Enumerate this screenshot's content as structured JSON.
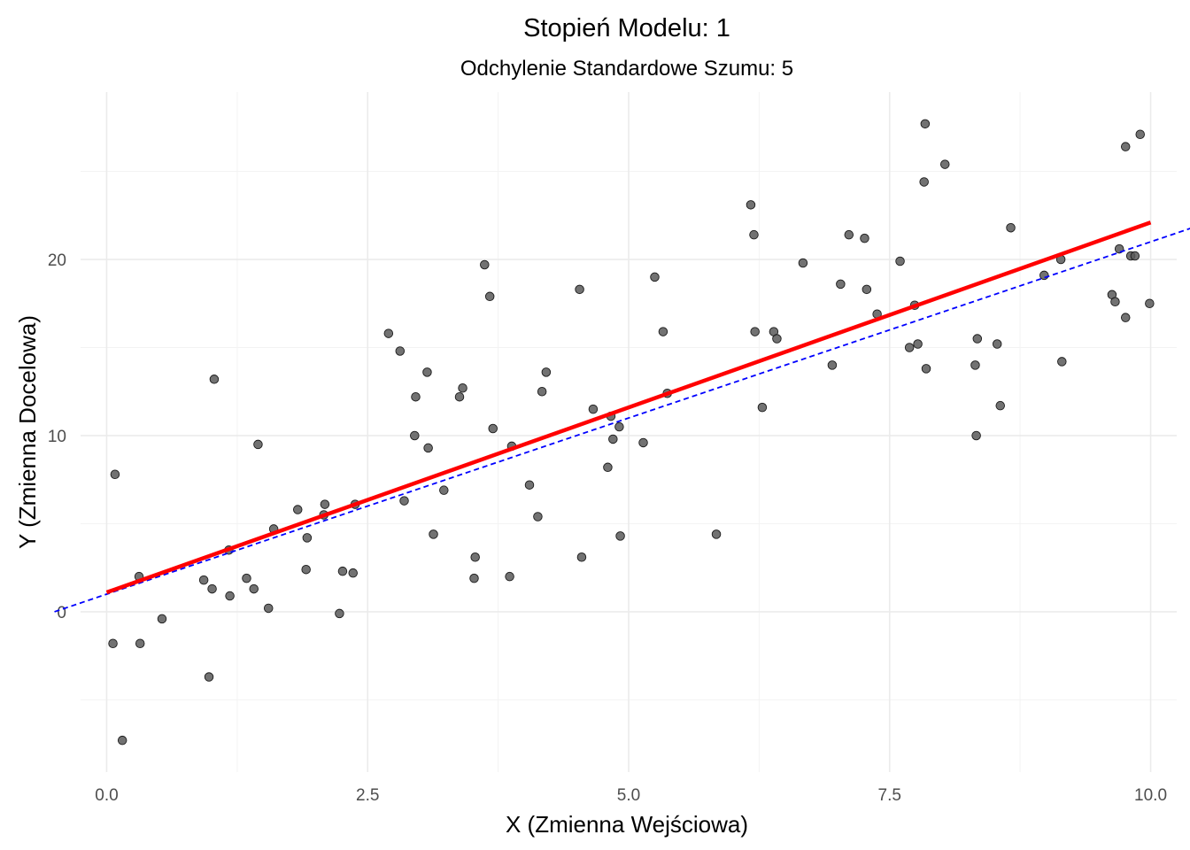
{
  "chart_data": {
    "type": "scatter",
    "title": "Stopień Modelu: 1",
    "subtitle": "Odchylenie Standardowe Szumu: 5",
    "xlabel": "X (Zmienna Wejściowa)",
    "ylabel": "Y (Zmienna Docelowa)",
    "xlim": [
      -0.25,
      10.25
    ],
    "ylim": [
      -9.1,
      29.5
    ],
    "x_ticks": [
      0.0,
      2.5,
      5.0,
      7.5,
      10.0
    ],
    "x_tick_labels": [
      "0.0",
      "2.5",
      "5.0",
      "7.5",
      "10.0"
    ],
    "y_ticks": [
      0,
      10,
      20
    ],
    "y_tick_labels": [
      "0",
      "10",
      "20"
    ],
    "grid": true,
    "colors": {
      "points": "#595959",
      "fit_line": "#ff0000",
      "true_line": "#0000ff"
    },
    "fitted_line": {
      "style": "solid",
      "x": [
        0.0,
        10.0
      ],
      "y": [
        1.1,
        22.1
      ]
    },
    "true_line": {
      "style": "dashed",
      "x": [
        -0.5,
        10.5
      ],
      "y": [
        0.0,
        22.0
      ]
    },
    "points": [
      {
        "x": 0.06,
        "y": -1.8
      },
      {
        "x": 0.08,
        "y": 7.8
      },
      {
        "x": 0.15,
        "y": -7.3
      },
      {
        "x": 0.31,
        "y": 2.0
      },
      {
        "x": 0.32,
        "y": -1.8
      },
      {
        "x": 0.53,
        "y": -0.4
      },
      {
        "x": 0.93,
        "y": 1.8
      },
      {
        "x": 0.98,
        "y": -3.7
      },
      {
        "x": 1.01,
        "y": 1.3
      },
      {
        "x": 1.03,
        "y": 13.2
      },
      {
        "x": 1.18,
        "y": 0.9
      },
      {
        "x": 1.17,
        "y": 3.5
      },
      {
        "x": 1.34,
        "y": 1.9
      },
      {
        "x": 1.41,
        "y": 1.3
      },
      {
        "x": 1.45,
        "y": 9.5
      },
      {
        "x": 1.55,
        "y": 0.2
      },
      {
        "x": 1.6,
        "y": 4.7
      },
      {
        "x": 1.83,
        "y": 5.8
      },
      {
        "x": 1.91,
        "y": 2.4
      },
      {
        "x": 1.92,
        "y": 4.2
      },
      {
        "x": 2.09,
        "y": 6.1
      },
      {
        "x": 2.08,
        "y": 5.5
      },
      {
        "x": 2.23,
        "y": -0.1
      },
      {
        "x": 2.26,
        "y": 2.3
      },
      {
        "x": 2.36,
        "y": 2.2
      },
      {
        "x": 2.38,
        "y": 6.1
      },
      {
        "x": 2.7,
        "y": 15.8
      },
      {
        "x": 2.81,
        "y": 14.8
      },
      {
        "x": 2.85,
        "y": 6.3
      },
      {
        "x": 2.95,
        "y": 10.0
      },
      {
        "x": 2.96,
        "y": 12.2
      },
      {
        "x": 3.07,
        "y": 13.6
      },
      {
        "x": 3.08,
        "y": 9.3
      },
      {
        "x": 3.13,
        "y": 4.4
      },
      {
        "x": 3.23,
        "y": 6.9
      },
      {
        "x": 3.38,
        "y": 12.2
      },
      {
        "x": 3.41,
        "y": 12.7
      },
      {
        "x": 3.52,
        "y": 1.9
      },
      {
        "x": 3.53,
        "y": 3.1
      },
      {
        "x": 3.62,
        "y": 19.7
      },
      {
        "x": 3.67,
        "y": 17.9
      },
      {
        "x": 3.7,
        "y": 10.4
      },
      {
        "x": 3.86,
        "y": 2.0
      },
      {
        "x": 3.88,
        "y": 9.4
      },
      {
        "x": 4.05,
        "y": 7.2
      },
      {
        "x": 4.13,
        "y": 5.4
      },
      {
        "x": 4.17,
        "y": 12.5
      },
      {
        "x": 4.21,
        "y": 13.6
      },
      {
        "x": 4.53,
        "y": 18.3
      },
      {
        "x": 4.55,
        "y": 3.1
      },
      {
        "x": 4.66,
        "y": 11.5
      },
      {
        "x": 4.8,
        "y": 8.2
      },
      {
        "x": 4.83,
        "y": 11.1
      },
      {
        "x": 4.85,
        "y": 9.8
      },
      {
        "x": 4.91,
        "y": 10.5
      },
      {
        "x": 4.92,
        "y": 4.3
      },
      {
        "x": 5.14,
        "y": 9.6
      },
      {
        "x": 5.25,
        "y": 19.0
      },
      {
        "x": 5.33,
        "y": 15.9
      },
      {
        "x": 5.37,
        "y": 12.4
      },
      {
        "x": 5.84,
        "y": 4.4
      },
      {
        "x": 6.17,
        "y": 23.1
      },
      {
        "x": 6.2,
        "y": 21.4
      },
      {
        "x": 6.21,
        "y": 15.9
      },
      {
        "x": 6.28,
        "y": 11.6
      },
      {
        "x": 6.39,
        "y": 15.9
      },
      {
        "x": 6.42,
        "y": 15.5
      },
      {
        "x": 6.67,
        "y": 19.8
      },
      {
        "x": 6.95,
        "y": 14.0
      },
      {
        "x": 7.03,
        "y": 18.6
      },
      {
        "x": 7.11,
        "y": 21.4
      },
      {
        "x": 7.26,
        "y": 21.2
      },
      {
        "x": 7.28,
        "y": 18.3
      },
      {
        "x": 7.38,
        "y": 16.9
      },
      {
        "x": 7.6,
        "y": 19.9
      },
      {
        "x": 7.69,
        "y": 15.0
      },
      {
        "x": 7.74,
        "y": 17.4
      },
      {
        "x": 7.77,
        "y": 15.2
      },
      {
        "x": 7.83,
        "y": 24.4
      },
      {
        "x": 7.84,
        "y": 27.7
      },
      {
        "x": 7.85,
        "y": 13.8
      },
      {
        "x": 8.03,
        "y": 25.4
      },
      {
        "x": 8.32,
        "y": 14.0
      },
      {
        "x": 8.33,
        "y": 10.0
      },
      {
        "x": 8.34,
        "y": 15.5
      },
      {
        "x": 8.53,
        "y": 15.2
      },
      {
        "x": 8.56,
        "y": 11.7
      },
      {
        "x": 8.66,
        "y": 21.8
      },
      {
        "x": 8.98,
        "y": 19.1
      },
      {
        "x": 9.14,
        "y": 20.0
      },
      {
        "x": 9.15,
        "y": 14.2
      },
      {
        "x": 9.63,
        "y": 18.0
      },
      {
        "x": 9.66,
        "y": 17.6
      },
      {
        "x": 9.7,
        "y": 20.6
      },
      {
        "x": 9.76,
        "y": 16.7
      },
      {
        "x": 9.76,
        "y": 26.4
      },
      {
        "x": 9.81,
        "y": 20.2
      },
      {
        "x": 9.85,
        "y": 20.2
      },
      {
        "x": 9.9,
        "y": 27.1
      },
      {
        "x": 9.99,
        "y": 17.5
      }
    ]
  }
}
